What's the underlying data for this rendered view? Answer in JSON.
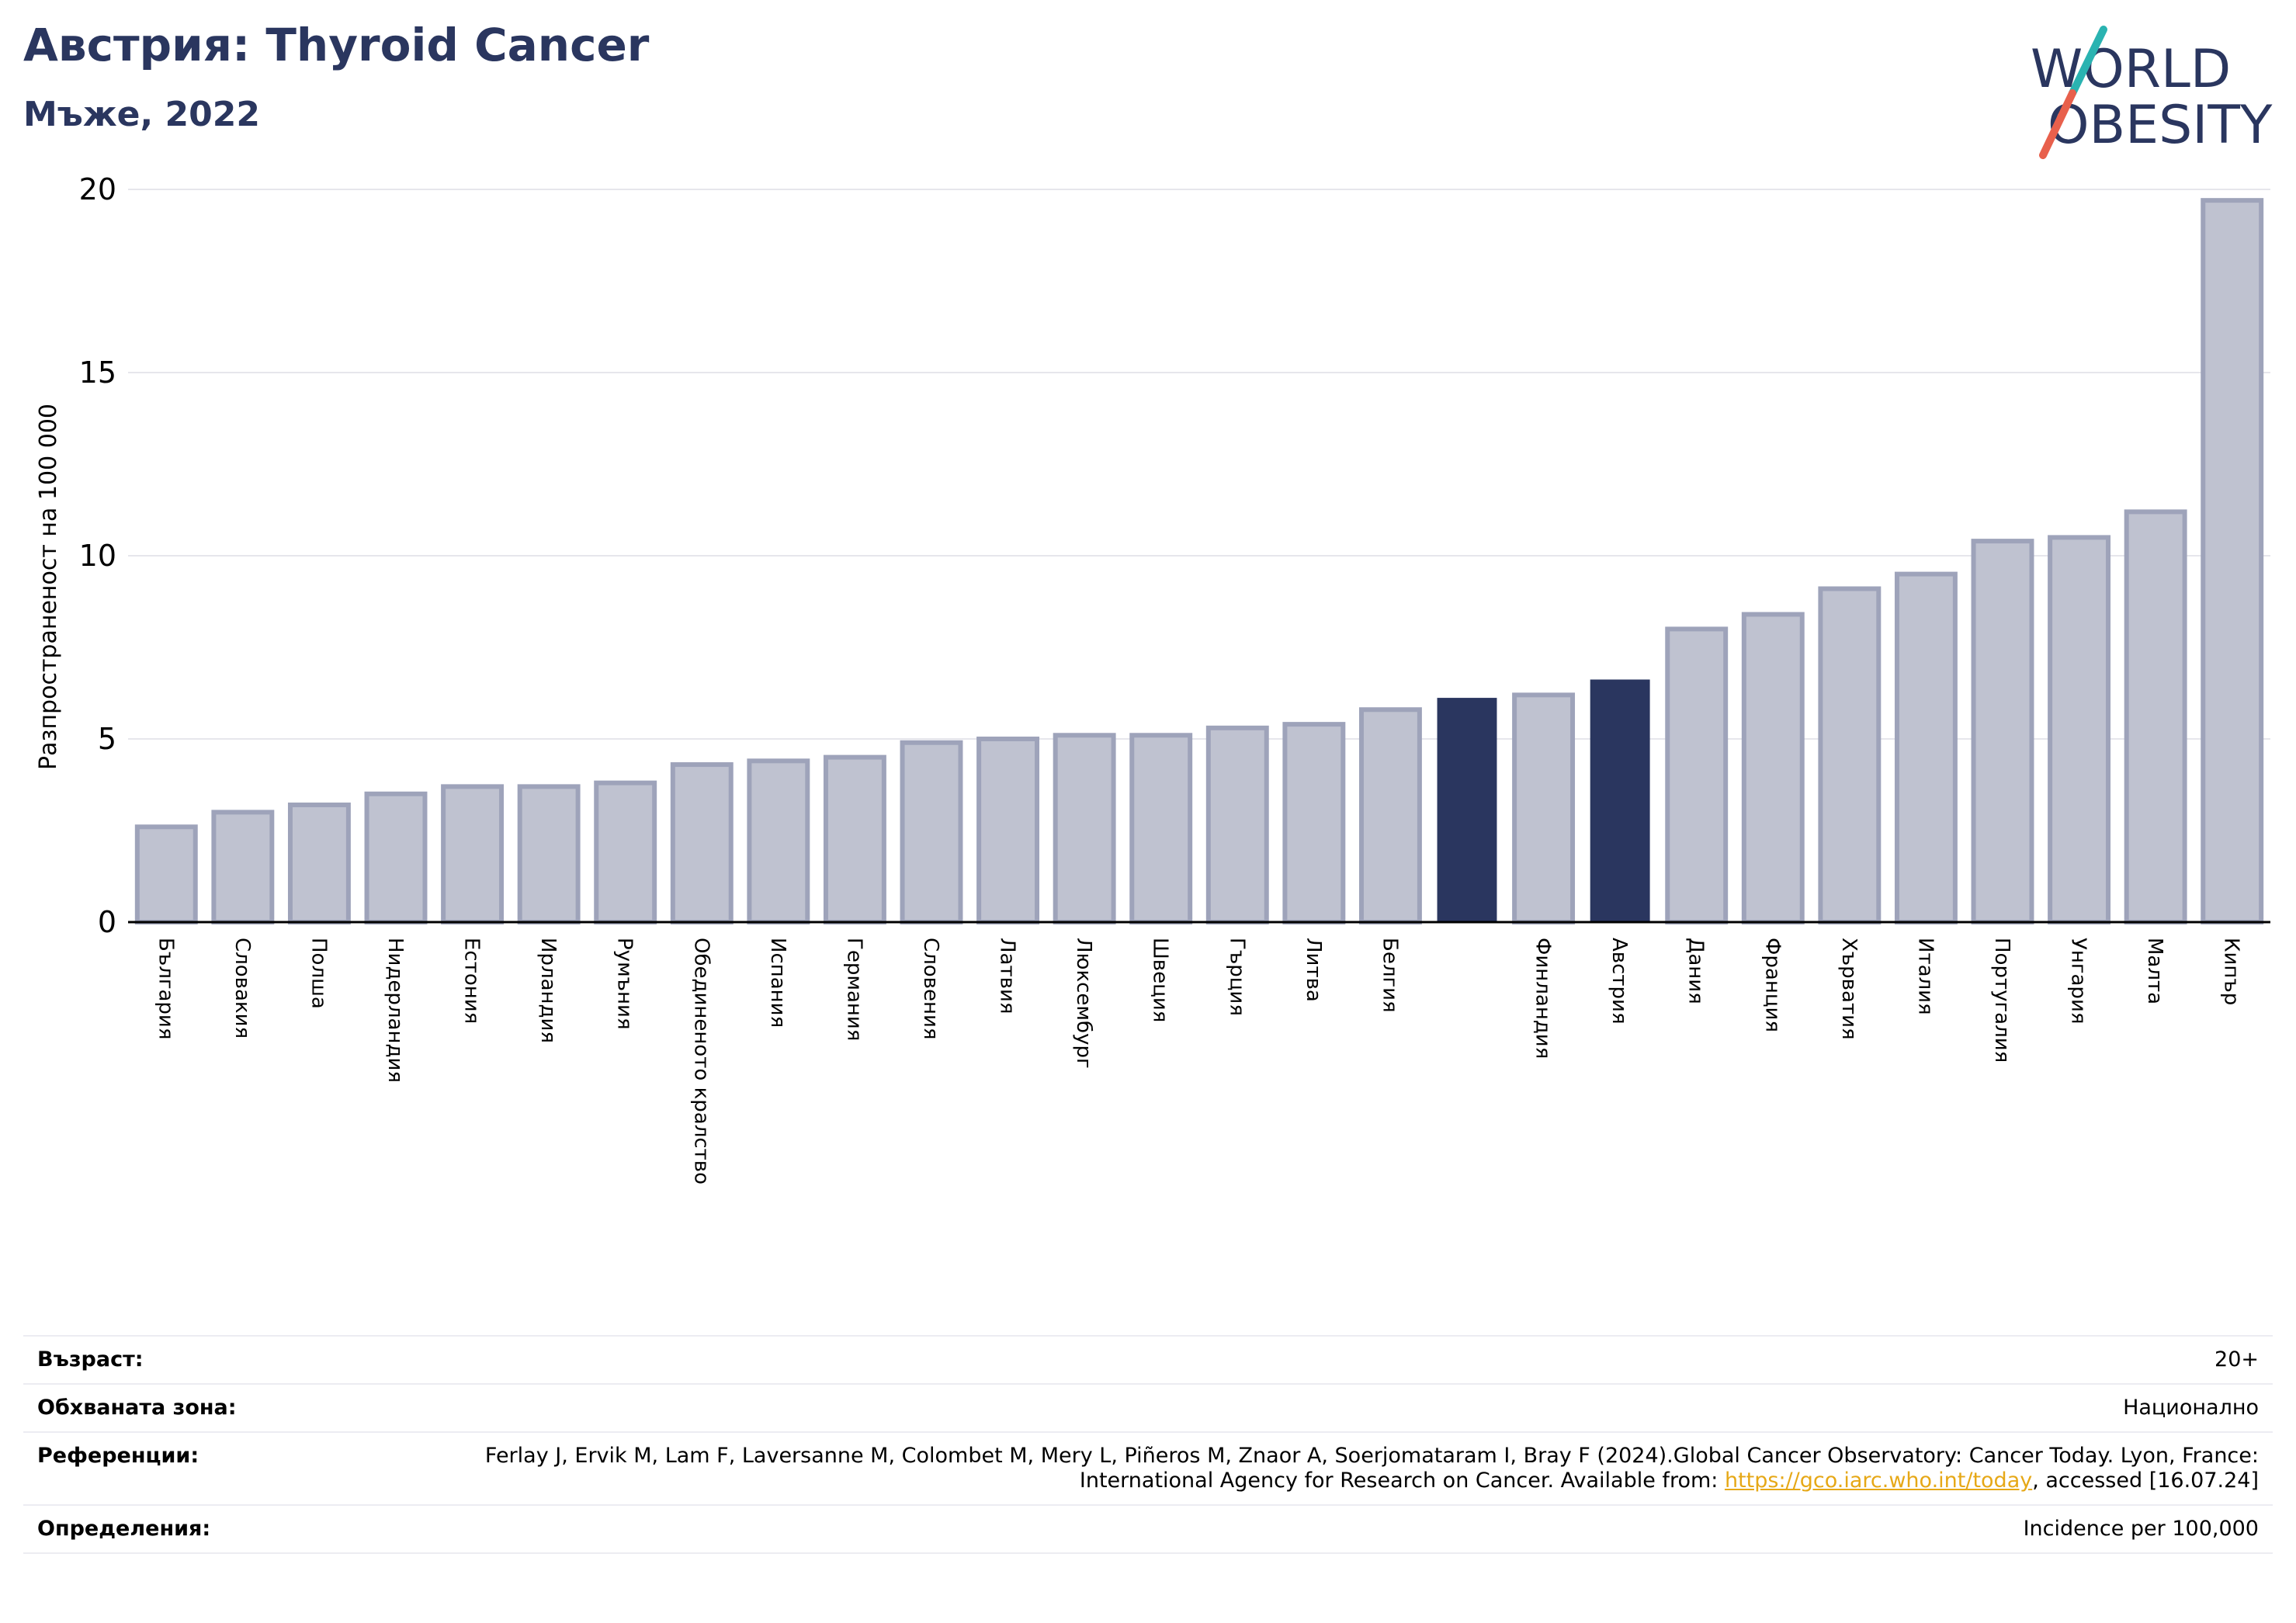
{
  "header": {
    "title": "Австрия: Thyroid Cancer",
    "subtitle": "Мъже, 2022"
  },
  "logo": {
    "line1": "WORLD",
    "line2": "OBESITY",
    "colors": {
      "text": "#2a365f",
      "slash_top": "#2ab3b1",
      "slash_bottom": "#e8604c"
    }
  },
  "colors": {
    "bar": "#bfc2d0",
    "bar_edge": "#9ea3ba",
    "highlight": "#2a365f",
    "grid": "#e6e6ec",
    "axis": "#000000"
  },
  "chart_data": {
    "type": "bar",
    "ylabel": "Разпространеност  на 100 000",
    "ylim": [
      0,
      20
    ],
    "yticks": [
      0,
      5,
      10,
      15,
      20
    ],
    "grid": true,
    "categories": [
      "България",
      "Словакия",
      "Полша",
      "Нидерландия",
      "Естония",
      "Ирландия",
      "Румъния",
      "Обединеното кралство",
      "Испания",
      "Германия",
      "Словения",
      "Латвия",
      "Люксембург",
      "Швеция",
      "Гърция",
      "Литва",
      "Белгия",
      "",
      "Финландия",
      "Австрия",
      "Дания",
      "Франция",
      "Хърватия",
      "Италия",
      "Португалия",
      "Унгария",
      "Малта",
      "Кипър"
    ],
    "values": [
      2.6,
      3.0,
      3.2,
      3.5,
      3.7,
      3.7,
      3.8,
      4.3,
      4.4,
      4.5,
      4.9,
      5.0,
      5.1,
      5.1,
      5.3,
      5.4,
      5.8,
      6.1,
      6.2,
      6.6,
      8.0,
      8.4,
      9.1,
      9.5,
      10.4,
      10.5,
      11.2,
      19.7
    ],
    "highlighted": [
      false,
      false,
      false,
      false,
      false,
      false,
      false,
      false,
      false,
      false,
      false,
      false,
      false,
      false,
      false,
      false,
      false,
      true,
      false,
      true,
      false,
      false,
      false,
      false,
      false,
      false,
      false,
      false
    ]
  },
  "info": [
    {
      "label": "Възраст:",
      "value": "20+"
    },
    {
      "label": "Обхваната зона:",
      "value": "Национално"
    },
    {
      "label": "Референции:",
      "value_before": "Ferlay J, Ervik M, Lam F, Laversanne M, Colombet M, Mery L, Piñeros M, Znaor A, Soerjomataram I, Bray F (2024).Global Cancer Observatory: Cancer Today. Lyon, France: International Agency for Research on Cancer. Available from: ",
      "link": "https://gco.iarc.who.int/today",
      "value_after": ", accessed [16.07.24]"
    },
    {
      "label": "Определения:",
      "value": "Incidence per 100,000"
    }
  ]
}
